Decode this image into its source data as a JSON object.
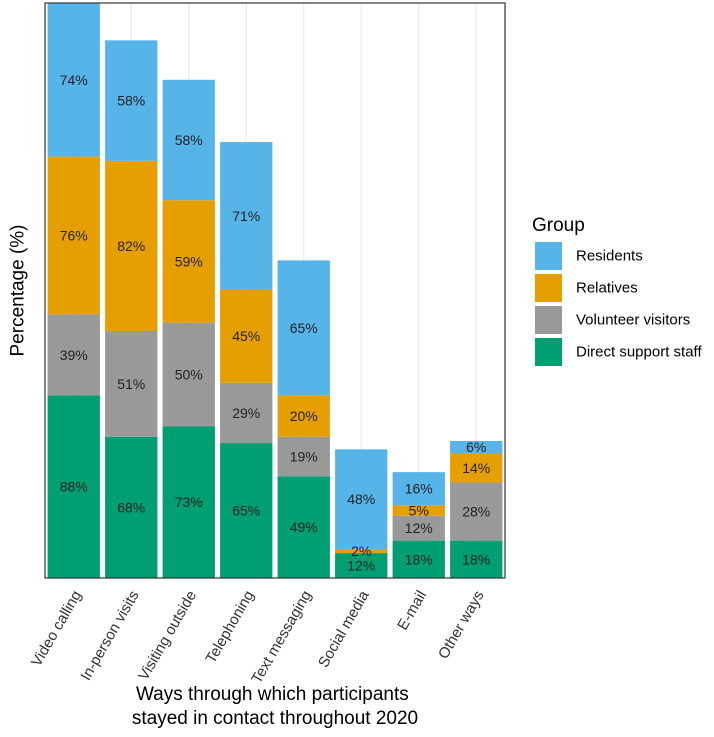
{
  "chart_data": {
    "type": "bar",
    "stacked": true,
    "categories": [
      "Video calling",
      "In-person visits",
      "Visiting outside",
      "Telephoning",
      "Text messaging",
      "Social media",
      "E-mail",
      "Other ways"
    ],
    "series": [
      {
        "name": "Direct support staff",
        "color": "#009E73",
        "values": [
          88,
          68,
          73,
          65,
          49,
          12,
          18,
          18
        ]
      },
      {
        "name": "Volunteer visitors",
        "color": "#999999",
        "values": [
          39,
          51,
          50,
          29,
          19,
          0,
          12,
          28
        ]
      },
      {
        "name": "Relatives",
        "color": "#E69F00",
        "values": [
          76,
          82,
          59,
          45,
          20,
          2,
          5,
          14
        ]
      },
      {
        "name": "Residents",
        "color": "#56B4E9",
        "values": [
          74,
          58,
          58,
          71,
          65,
          48,
          16,
          6
        ]
      }
    ],
    "bar_labels": [
      {
        "series": "Direct support staff",
        "labels": [
          "88%",
          "68%",
          "73%",
          "65%",
          "49%",
          "12%",
          "18%",
          "18%"
        ]
      },
      {
        "series": "Volunteer visitors",
        "labels": [
          "39%",
          "51%",
          "50%",
          "29%",
          "19%",
          "",
          "12%",
          "28%"
        ]
      },
      {
        "series": "Relatives",
        "labels": [
          "76%",
          "82%",
          "59%",
          "45%",
          "20%",
          "2%",
          "5%",
          "14%"
        ]
      },
      {
        "series": "Residents",
        "labels": [
          "74%",
          "58%",
          "58%",
          "71%",
          "65%",
          "48%",
          "16%",
          "6%"
        ]
      }
    ],
    "title": "",
    "xlabel_lines": [
      "Ways through which participants",
      "stayed in contact throughout 2020"
    ],
    "ylabel": "Percentage (%)",
    "ylim": [
      0,
      277
    ],
    "grid": true,
    "legend": {
      "title": "Group",
      "position": "right",
      "entries": [
        "Residents",
        "Relatives",
        "Volunteer visitors",
        "Direct support staff"
      ]
    }
  }
}
